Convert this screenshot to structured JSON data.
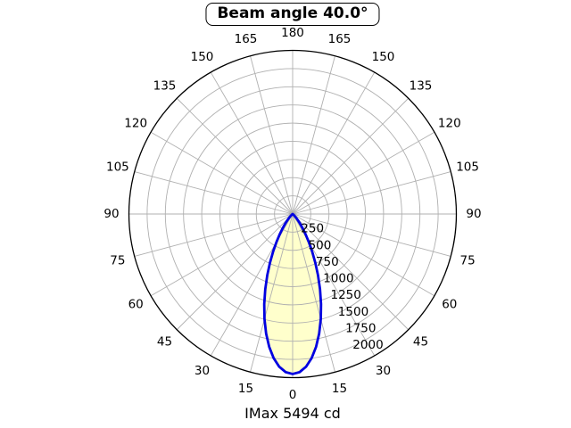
{
  "chart_data": {
    "type": "polar",
    "title": "Beam angle 40.0°",
    "footnote": "IMax 5494 cd",
    "beam_angle_deg": 40.0,
    "imax_cd": 5494,
    "angle_ticks_deg": [
      0,
      15,
      30,
      45,
      60,
      75,
      90,
      105,
      120,
      135,
      150,
      165,
      180
    ],
    "angle_ticks_mirrored": true,
    "angle_grid_step_deg": 15,
    "radial_ticks": [
      250,
      500,
      750,
      1000,
      1250,
      1500,
      1750,
      2000
    ],
    "r_axis_max": 2250,
    "profile": {
      "theta_deg": [
        0,
        2.5,
        5,
        7.5,
        10,
        12.5,
        15,
        17.5,
        20,
        22.5,
        25,
        27.5,
        30,
        32.5,
        35,
        37.5,
        40,
        42.5,
        45,
        47.5,
        50,
        52.5,
        55,
        57.5,
        60,
        62.5,
        65
      ],
      "intensity": [
        2200,
        2177,
        2109,
        1999,
        1855,
        1684,
        1495,
        1298,
        1100,
        911,
        735,
        579,
        443,
        330,
        238,
        167,
        113,
        74,
        46,
        28,
        16,
        9,
        4,
        2,
        1,
        0,
        0
      ]
    },
    "colors": {
      "curve": "#0000e0",
      "lobe_fill": "#ffffcc",
      "grid": "#b0b0b0",
      "axis": "#000000",
      "background": "#ffffff"
    }
  }
}
